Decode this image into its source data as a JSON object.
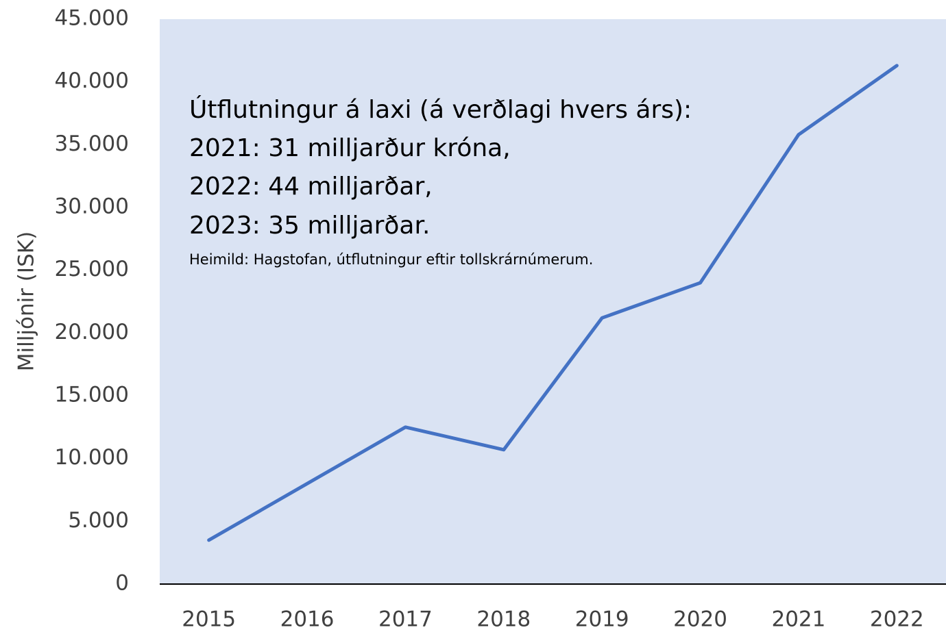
{
  "chart_data": {
    "type": "line",
    "y_label": "Milljónir (ISK)",
    "annotations": [
      "Útflutningur á laxi (á verðlagi hvers árs):",
      "2021: 31 milljarður króna,",
      "2022: 44 milljarðar,",
      "2023: 35 milljarðar."
    ],
    "source": "Heimild: Hagstofan, útflutningur eftir tollskrárnúmerum.",
    "categories": [
      "2015",
      "2016",
      "2017",
      "2018",
      "2019",
      "2020",
      "2021",
      "2022"
    ],
    "series": [
      {
        "name": "Útflutningur",
        "color": "#4472c4",
        "values": [
          3500,
          8000,
          12500,
          10700,
          21200,
          24000,
          35800,
          41300
        ]
      }
    ],
    "ylim": [
      0,
      45000
    ],
    "yticks": [
      0,
      {
        "value": 5000,
        "label": "5.000"
      },
      {
        "value": 10000,
        "label": "10.000"
      },
      {
        "value": 15000,
        "label": "15.000"
      },
      {
        "value": 20000,
        "label": "20.000"
      },
      {
        "value": 25000,
        "label": "25.000"
      },
      {
        "value": 30000,
        "label": "30.000"
      },
      {
        "value": 35000,
        "label": "35.000"
      },
      {
        "value": 40000,
        "label": "40.000"
      },
      {
        "value": 45000,
        "label": "45.000"
      }
    ],
    "plot_background": "#dae3f3"
  }
}
